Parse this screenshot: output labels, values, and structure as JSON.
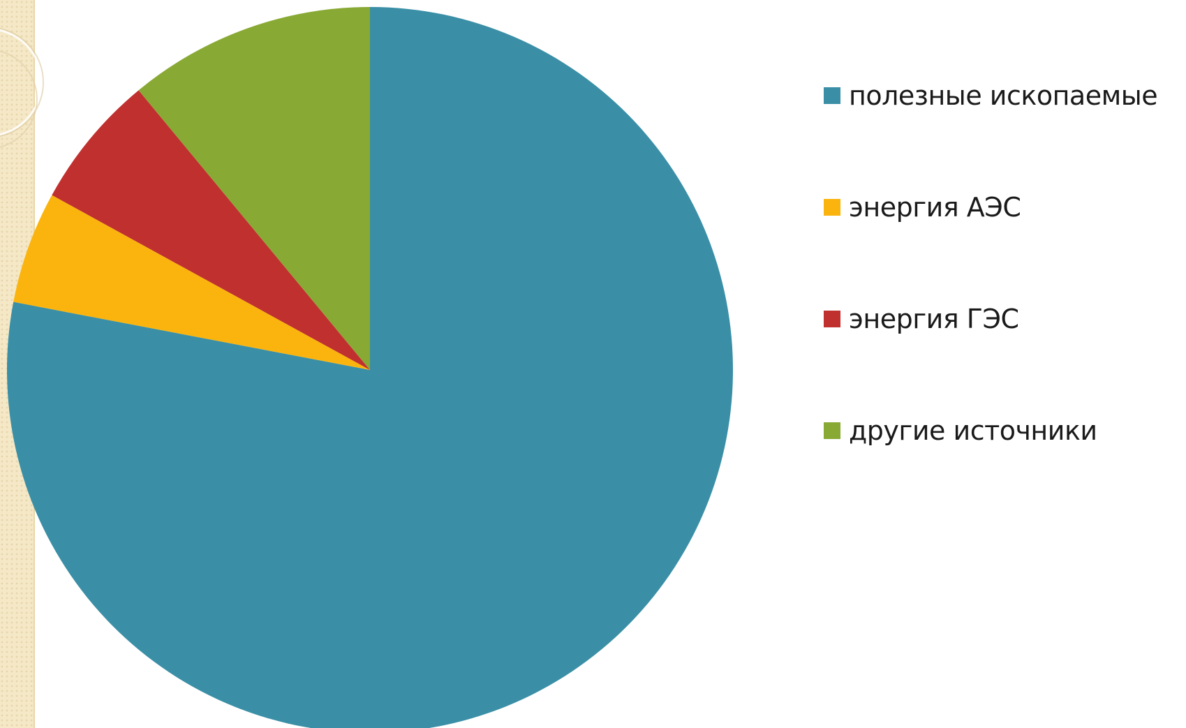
{
  "chart_data": {
    "type": "pie",
    "categories": [
      "полезные ископаемые",
      "энергия АЭС",
      "энергия ГЭС",
      "другие источники"
    ],
    "values": [
      78,
      5,
      6,
      11
    ],
    "colors": [
      "#3a8fa6",
      "#fbb40d",
      "#c0302e",
      "#89a935"
    ],
    "legend_position": "right",
    "start_angle_deg": 0,
    "direction": "clockwise"
  },
  "legend": {
    "items": [
      {
        "label": "полезные ископаемые",
        "color": "#3a8fa6"
      },
      {
        "label": "энергия АЭС",
        "color": "#fbb40d"
      },
      {
        "label": "энергия ГЭС",
        "color": "#c0302e"
      },
      {
        "label": "другие источники",
        "color": "#89a935"
      }
    ]
  }
}
